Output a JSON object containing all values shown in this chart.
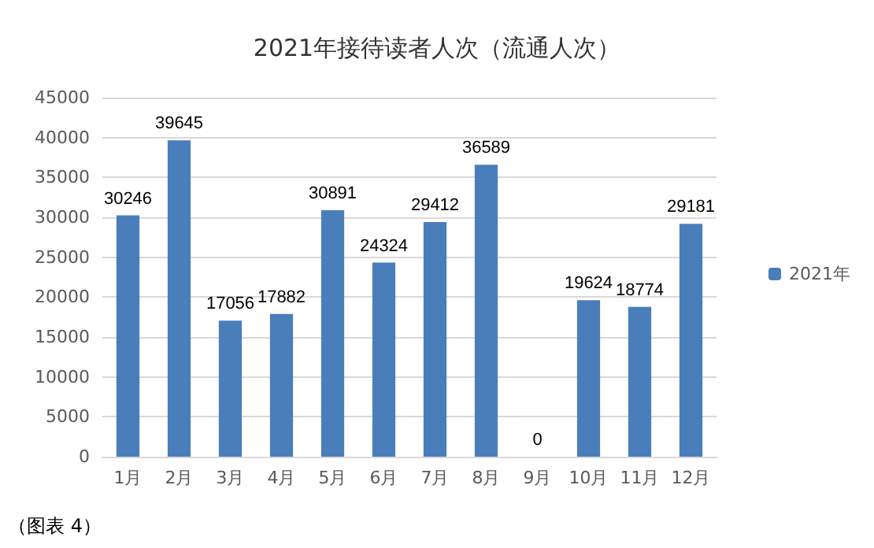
{
  "chart_data": {
    "type": "bar",
    "title": "2021年接待读者人次（流通人次）",
    "categories": [
      "1月",
      "2月",
      "3月",
      "4月",
      "5月",
      "6月",
      "7月",
      "8月",
      "9月",
      "10月",
      "11月",
      "12月"
    ],
    "series": [
      {
        "name": "2021年",
        "color": "#4a7ebb",
        "values": [
          30246,
          39645,
          17056,
          17882,
          30891,
          24324,
          29412,
          36589,
          0,
          19624,
          18774,
          29181
        ]
      }
    ],
    "ylim": [
      0,
      45000
    ],
    "yticks": [
      0,
      5000,
      10000,
      15000,
      20000,
      25000,
      30000,
      35000,
      40000,
      45000
    ],
    "grid": "y",
    "legend": "right",
    "data_labels": true,
    "annotations": [
      "（图表 4）"
    ]
  }
}
